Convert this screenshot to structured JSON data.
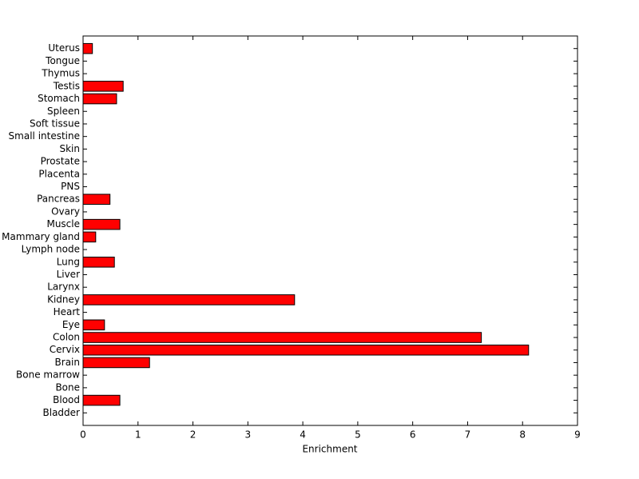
{
  "chart_data": {
    "type": "barh",
    "x_label": "Enrichment",
    "categories": [
      "Bladder",
      "Blood",
      "Bone",
      "Bone marrow",
      "Brain",
      "Cervix",
      "Colon",
      "Eye",
      "Heart",
      "Kidney",
      "Larynx",
      "Liver",
      "Lung",
      "Lymph node",
      "Mammary gland",
      "Muscle",
      "Ovary",
      "Pancreas",
      "PNS",
      "Placenta",
      "Prostate",
      "Skin",
      "Small intestine",
      "Soft tissue",
      "Spleen",
      "Stomach",
      "Testis",
      "Thymus",
      "Tongue",
      "Uterus"
    ],
    "values": [
      0,
      0.67,
      0,
      0,
      1.21,
      8.11,
      7.25,
      0.39,
      0,
      3.85,
      0,
      0,
      0.57,
      0,
      0.23,
      0.67,
      0,
      0.49,
      0,
      0,
      0,
      0,
      0,
      0,
      0,
      0.61,
      0.73,
      0,
      0,
      0.17
    ],
    "color": "#ff0000",
    "xlim": [
      0,
      9
    ],
    "xticks": [
      0,
      1,
      2,
      3,
      4,
      5,
      6,
      7,
      8,
      9
    ]
  }
}
